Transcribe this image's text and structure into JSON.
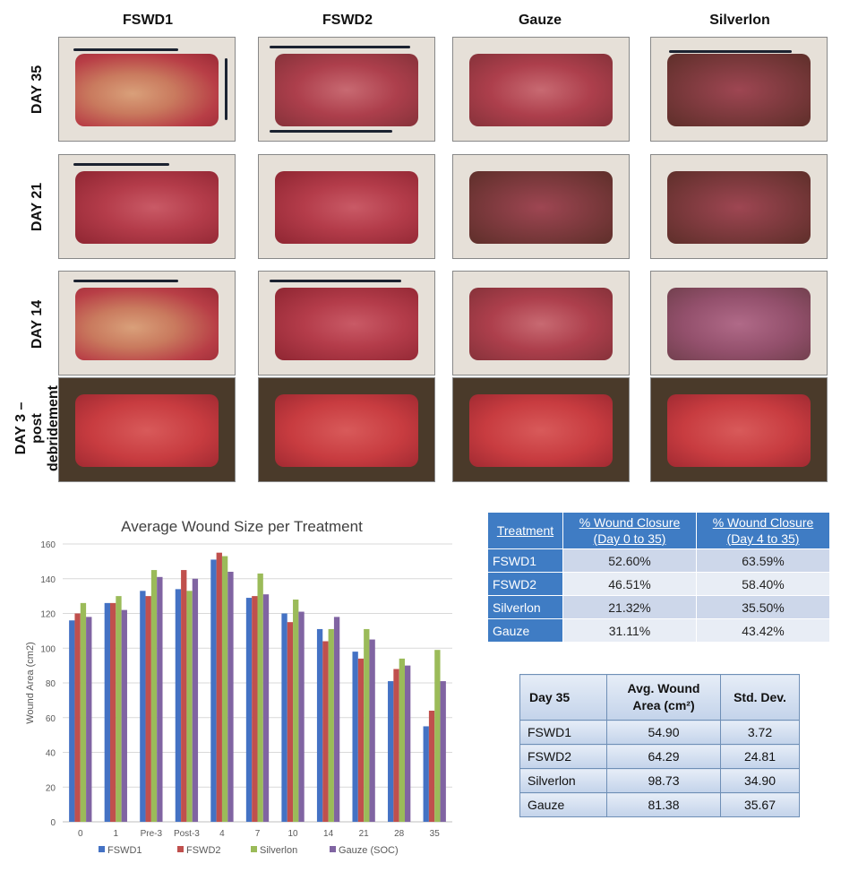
{
  "panel": {
    "columns": [
      "FSWD1",
      "FSWD2",
      "Gauze",
      "Silverlon"
    ],
    "rows": [
      "DAY 35",
      "DAY 21",
      "DAY 14",
      "DAY 3 – post debridement"
    ]
  },
  "closure_table": {
    "headers": [
      "Treatment",
      "% Wound Closure (Day 0 to 35)",
      "% Wound Closure (Day 4 to 35)"
    ],
    "rows": [
      [
        "FSWD1",
        "52.60%",
        "63.59%"
      ],
      [
        "FSWD2",
        "46.51%",
        "58.40%"
      ],
      [
        "Silverlon",
        "21.32%",
        "35.50%"
      ],
      [
        "Gauze",
        "31.11%",
        "43.42%"
      ]
    ]
  },
  "size_table": {
    "headers": [
      "Day 35",
      "Avg. Wound Area (cm²)",
      "Std. Dev."
    ],
    "rows": [
      [
        "FSWD1",
        "54.90",
        "3.72"
      ],
      [
        "FSWD2",
        "64.29",
        "24.81"
      ],
      [
        "Silverlon",
        "98.73",
        "34.90"
      ],
      [
        "Gauze",
        "81.38",
        "35.67"
      ]
    ]
  },
  "chart_data": {
    "type": "bar",
    "title": "Average Wound Size per Treatment",
    "xlabel": "",
    "ylabel": "Wound Area (cm2)",
    "ylim": [
      0,
      160
    ],
    "yticks": [
      0,
      20,
      40,
      60,
      80,
      100,
      120,
      140,
      160
    ],
    "grid": true,
    "legend": "bottom",
    "categories": [
      "0",
      "1",
      "Pre-3",
      "Post-3",
      "4",
      "7",
      "10",
      "14",
      "21",
      "28",
      "35"
    ],
    "series": [
      {
        "name": "FSWD1",
        "color": "#4472c4",
        "values": [
          116,
          126,
          133,
          134,
          151,
          129,
          120,
          111,
          98,
          81,
          55
        ]
      },
      {
        "name": "FSWD2",
        "color": "#c0504d",
        "values": [
          120,
          126,
          130,
          145,
          155,
          130,
          115,
          104,
          94,
          88,
          64
        ]
      },
      {
        "name": "Silverlon",
        "color": "#9bbb59",
        "values": [
          126,
          130,
          145,
          133,
          153,
          143,
          128,
          111,
          111,
          94,
          99
        ]
      },
      {
        "name": "Gauze (SOC)",
        "color": "#8064a2",
        "values": [
          118,
          122,
          141,
          140,
          144,
          131,
          121,
          118,
          105,
          90,
          81
        ]
      }
    ]
  }
}
